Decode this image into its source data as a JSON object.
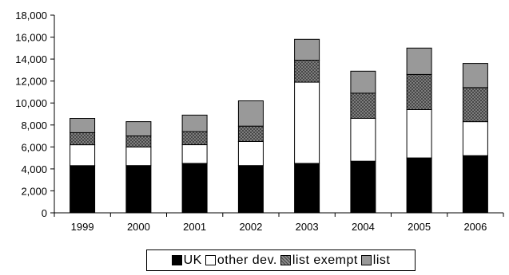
{
  "chart_data": {
    "type": "bar",
    "stacked": true,
    "categories": [
      "1999",
      "2000",
      "2001",
      "2002",
      "2003",
      "2004",
      "2005",
      "2006"
    ],
    "series": [
      {
        "name": "UK",
        "color": "#000000",
        "pattern": "solid",
        "values": [
          4300,
          4300,
          4500,
          4300,
          4500,
          4700,
          5000,
          5200
        ]
      },
      {
        "name": "other dev.",
        "color": "#ffffff",
        "pattern": "solid",
        "values": [
          1900,
          1700,
          1700,
          2200,
          7400,
          3900,
          4400,
          3100
        ]
      },
      {
        "name": "list exempt",
        "color": "#7a7a7a",
        "pattern": "crosshatch",
        "values": [
          1100,
          1000,
          1200,
          1400,
          2000,
          2300,
          3200,
          3100
        ]
      },
      {
        "name": "list",
        "color": "#999999",
        "pattern": "solid",
        "values": [
          1300,
          1300,
          1500,
          2300,
          1900,
          2000,
          2400,
          2200
        ]
      }
    ],
    "ylim": [
      0,
      18000
    ],
    "yticks": [
      0,
      2000,
      4000,
      6000,
      8000,
      10000,
      12000,
      14000,
      16000,
      18000
    ],
    "ytick_labels": [
      "0",
      "2,000",
      "4,000",
      "6,000",
      "8,000",
      "10,000",
      "12,000",
      "14,000",
      "16,000",
      "18,000"
    ],
    "grid": false,
    "legend_position": "bottom"
  }
}
